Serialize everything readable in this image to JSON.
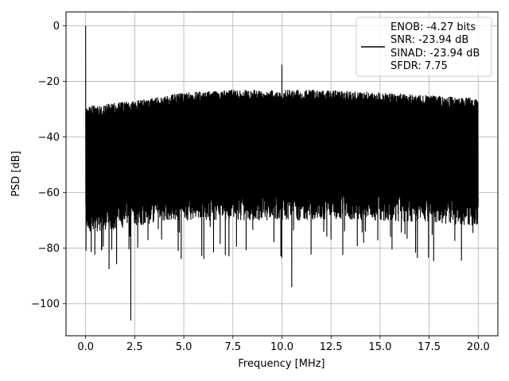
{
  "chart_data": {
    "type": "line",
    "title": "",
    "xlabel": "Frequency [MHz]",
    "ylabel": "PSD [dB]",
    "xlim": [
      -1.0,
      21.0
    ],
    "ylim": [
      -111.5,
      5.0
    ],
    "xticks": [
      0.0,
      2.5,
      5.0,
      7.5,
      10.0,
      12.5,
      15.0,
      17.5,
      20.0
    ],
    "xtick_labels": [
      "0.0",
      "2.5",
      "5.0",
      "7.5",
      "10.0",
      "12.5",
      "15.0",
      "17.5",
      "20.0"
    ],
    "yticks": [
      0,
      -20,
      -40,
      -60,
      -80,
      -100
    ],
    "ytick_labels": [
      "0",
      "−20",
      "−40",
      "−60",
      "−80",
      "−100"
    ],
    "grid": true,
    "legend_position": "top-right",
    "series": [
      {
        "name": "ENOB: -4.27 bits\nSNR: -23.94 dB\nSINAD: -23.94 dB\nSFDR: 7.75",
        "color": "#000000",
        "envelope": {
          "x": [
            0.0,
            1.0,
            2.5,
            5.0,
            7.5,
            10.0,
            12.5,
            15.0,
            17.5,
            20.0
          ],
          "upper": [
            -29,
            -28,
            -27,
            -24,
            -23,
            -23,
            -23,
            -24,
            -25,
            -26
          ],
          "typical_lower": [
            -70,
            -70,
            -68,
            -66,
            -66,
            -66,
            -66,
            -66,
            -67,
            -68
          ]
        },
        "features": [
          {
            "x": 0.0,
            "y": 0
          },
          {
            "x": 0.02,
            "y": -81
          },
          {
            "x": 2.3,
            "y": -106
          },
          {
            "x": 10.0,
            "y": -14
          },
          {
            "x": 10.5,
            "y": -94
          },
          {
            "x": 20.0,
            "y": -62
          }
        ]
      }
    ]
  },
  "legend": {
    "lines": [
      "ENOB: -4.27 bits",
      "SNR: -23.94 dB",
      "SINAD: -23.94 dB",
      "SFDR: 7.75"
    ]
  },
  "colors": {
    "line": "#000000",
    "grid": "#b0b0b0",
    "axes": "#000000",
    "background": "#ffffff"
  }
}
